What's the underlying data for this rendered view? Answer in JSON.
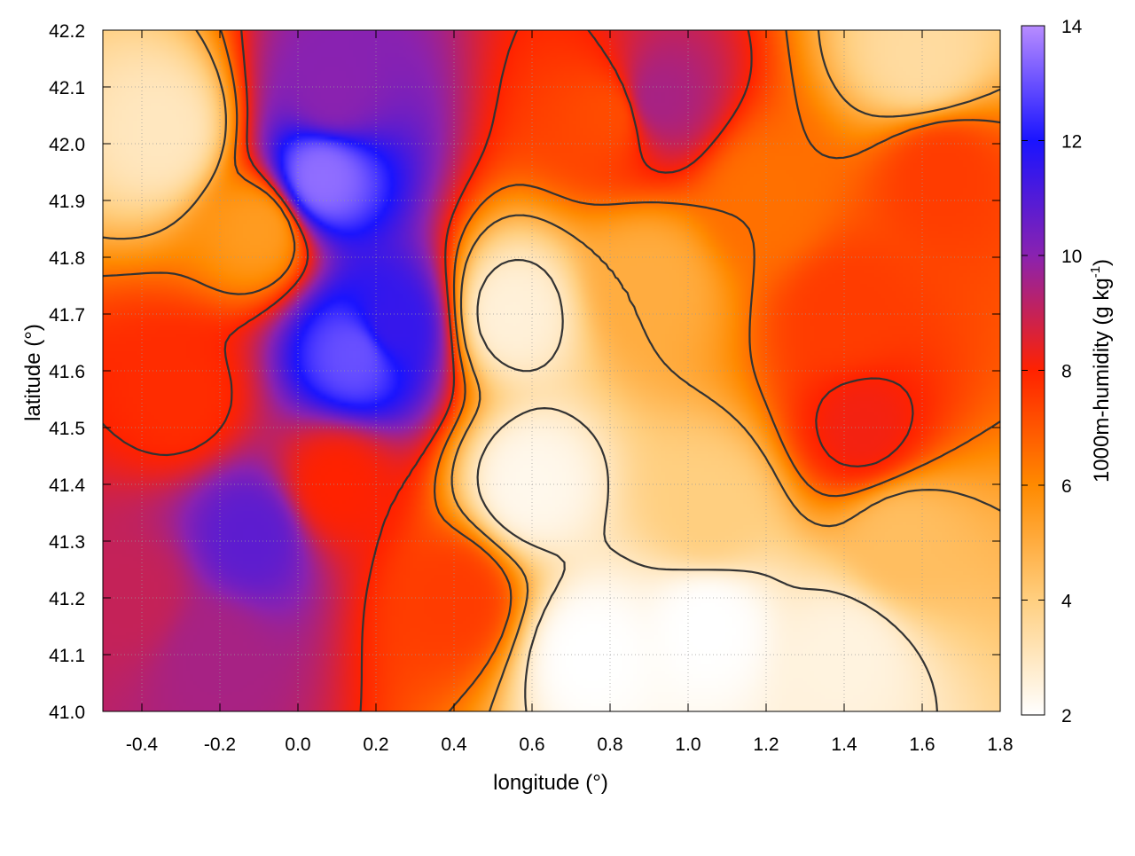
{
  "chart_data": {
    "type": "heatmap",
    "title": "",
    "xlabel": "longitude (°)",
    "ylabel": "latitude (°)",
    "colorbar_label": "1000m-humidity (g kg",
    "colorbar_label_sup": "-1",
    "colorbar_label_tail": ")",
    "xlim": [
      -0.5,
      1.8
    ],
    "ylim": [
      41.0,
      42.2
    ],
    "xticks": [
      "-0.4",
      "-0.2",
      "0.0",
      "0.2",
      "0.4",
      "0.6",
      "0.8",
      "1.0",
      "1.2",
      "1.4",
      "1.6",
      "1.8"
    ],
    "yticks": [
      "41.0",
      "41.1",
      "41.2",
      "41.3",
      "41.4",
      "41.5",
      "41.6",
      "41.7",
      "41.8",
      "41.9",
      "42.0",
      "42.1",
      "42.2"
    ],
    "colorbar_ticks": [
      "2",
      "4",
      "6",
      "8",
      "10",
      "12",
      "14"
    ],
    "colorbar_range": [
      2,
      14
    ],
    "grid": true,
    "colormap": [
      {
        "value": 2,
        "color": "#ffffff"
      },
      {
        "value": 4,
        "color": "#ffcf80"
      },
      {
        "value": 6,
        "color": "#ff8a00"
      },
      {
        "value": 8,
        "color": "#ff2200"
      },
      {
        "value": 10,
        "color": "#8a22b0"
      },
      {
        "value": 12,
        "color": "#1a14ff"
      },
      {
        "value": 14,
        "color": "#b88cff"
      }
    ],
    "contour_color": "#333333",
    "regions": [
      {
        "lon": -0.3,
        "lat": 41.55,
        "h": 7.8
      },
      {
        "lon": -0.42,
        "lat": 41.2,
        "h": 9.0
      },
      {
        "lon": -0.22,
        "lat": 41.1,
        "h": 9.5
      },
      {
        "lon": -0.12,
        "lat": 41.31,
        "h": 10.8
      },
      {
        "lon": 0.06,
        "lat": 41.94,
        "h": 13.5
      },
      {
        "lon": 0.09,
        "lat": 42.09,
        "h": 10.0
      },
      {
        "lon": 0.15,
        "lat": 41.63,
        "h": 13.0
      },
      {
        "lon": 0.24,
        "lat": 41.68,
        "h": 11.5
      },
      {
        "lon": 0.1,
        "lat": 41.4,
        "h": 8.0
      },
      {
        "lon": -0.35,
        "lat": 42.02,
        "h": 3.0
      },
      {
        "lon": -0.1,
        "lat": 41.85,
        "h": 5.5
      },
      {
        "lon": 0.55,
        "lat": 41.7,
        "h": 2.6
      },
      {
        "lon": 0.6,
        "lat": 41.4,
        "h": 2.3
      },
      {
        "lon": 0.75,
        "lat": 41.1,
        "h": 2.0
      },
      {
        "lon": 1.05,
        "lat": 41.15,
        "h": 2.0
      },
      {
        "lon": 1.4,
        "lat": 41.1,
        "h": 2.5
      },
      {
        "lon": 0.9,
        "lat": 41.75,
        "h": 5.0
      },
      {
        "lon": 0.8,
        "lat": 42.05,
        "h": 7.2
      },
      {
        "lon": 0.92,
        "lat": 42.08,
        "h": 9.5
      },
      {
        "lon": 1.2,
        "lat": 41.9,
        "h": 6.5
      },
      {
        "lon": 1.4,
        "lat": 41.7,
        "h": 7.5
      },
      {
        "lon": 1.45,
        "lat": 41.5,
        "h": 8.2
      },
      {
        "lon": 1.65,
        "lat": 41.95,
        "h": 7.5
      },
      {
        "lon": 1.55,
        "lat": 41.3,
        "h": 4.5
      },
      {
        "lon": 1.05,
        "lat": 41.35,
        "h": 4.0
      },
      {
        "lon": 0.4,
        "lat": 41.2,
        "h": 7.5
      },
      {
        "lon": 1.6,
        "lat": 42.15,
        "h": 3.5
      }
    ]
  }
}
